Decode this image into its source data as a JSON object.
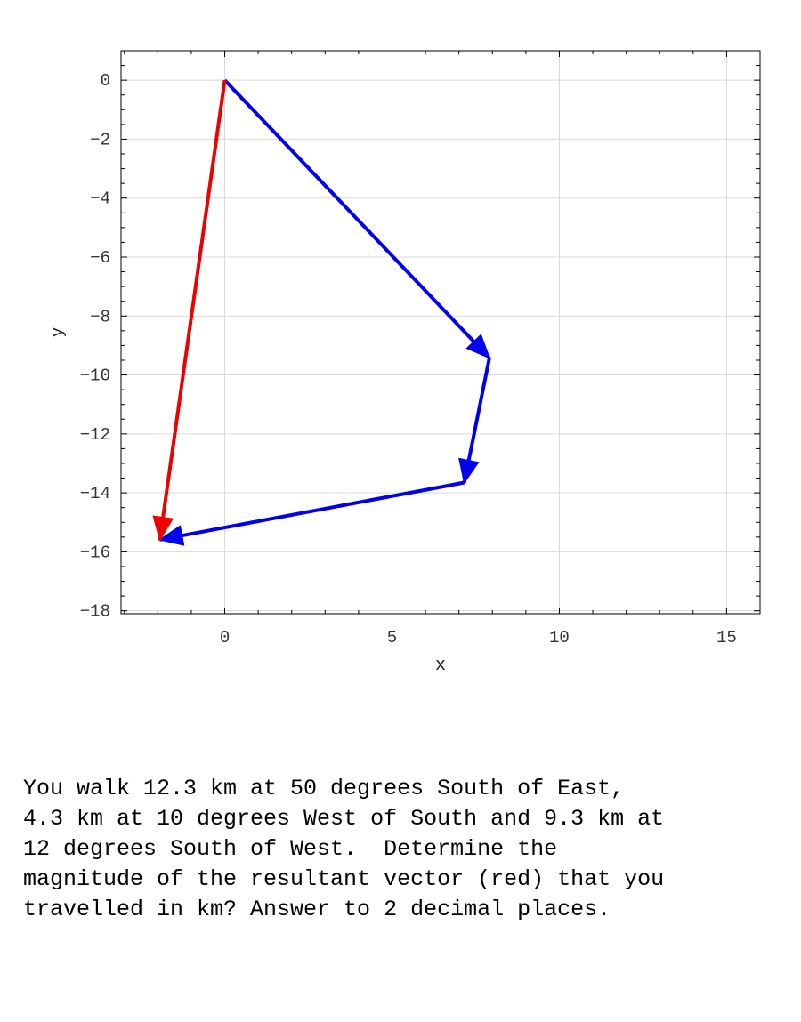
{
  "chart_data": {
    "type": "vector",
    "xlabel": "x",
    "ylabel": "y",
    "xlim": [
      -3.1,
      16
    ],
    "ylim": [
      -18.1,
      1
    ],
    "grid": true,
    "xticks": [
      0,
      5,
      10,
      15
    ],
    "yticks": [
      0,
      -2,
      -4,
      -6,
      -8,
      -10,
      -12,
      -14,
      -16,
      -18
    ],
    "vectors": [
      {
        "from": [
          0,
          0
        ],
        "to": [
          7.91,
          -9.42
        ],
        "color": "#0000ee"
      },
      {
        "from": [
          7.91,
          -9.42
        ],
        "to": [
          7.16,
          -13.65
        ],
        "color": "#0000ee"
      },
      {
        "from": [
          7.16,
          -13.65
        ],
        "to": [
          -1.94,
          -15.59
        ],
        "color": "#0000ee"
      },
      {
        "from": [
          0,
          0
        ],
        "to": [
          -1.94,
          -15.59
        ],
        "color": "#ee0000"
      }
    ]
  },
  "question_text": "You walk 12.3 km at 50 degrees South of East,\n4.3 km at 10 degrees West of South and 9.3 km at\n12 degrees South of West.  Determine the\nmagnitude of the resultant vector (red) that you\ntravelled in km? Answer to 2 decimal places."
}
